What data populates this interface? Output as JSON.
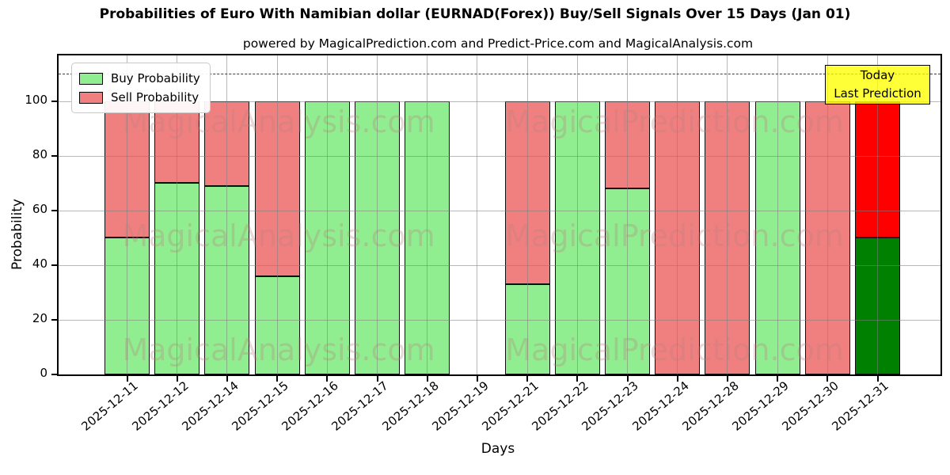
{
  "title": "Probabilities of Euro With Namibian dollar (EURNAD(Forex)) Buy/Sell Signals Over 15 Days (Jan 01)",
  "subtitle": "powered by MagicalPrediction.com and Predict-Price.com and MagicalAnalysis.com",
  "legend": [
    {
      "label": "Buy Probability",
      "color": "#90EE90"
    },
    {
      "label": "Sell Probability",
      "color": "#F08080"
    }
  ],
  "annotation": {
    "line1": "Today",
    "line2": "Last Prediction",
    "bg_color": "#FFFF00"
  },
  "watermarks": {
    "left": "MagicalAnalysis.com",
    "right": "MagicalPrediction.com"
  },
  "chart_data": {
    "type": "bar",
    "stacked": true,
    "title": "Probabilities of Euro With Namibian dollar (EURNAD(Forex)) Buy/Sell Signals Over 15 Days (Jan 01)",
    "xlabel": "Days",
    "ylabel": "Probability",
    "categories": [
      "2025-12-11",
      "2025-12-12",
      "2025-12-14",
      "2025-12-15",
      "2025-12-16",
      "2025-12-17",
      "2025-12-18",
      "2025-12-19",
      "2025-12-21",
      "2025-12-22",
      "2025-12-23",
      "2025-12-24",
      "2025-12-28",
      "2025-12-29",
      "2025-12-30",
      "2025-12-31"
    ],
    "series": [
      {
        "name": "Buy Probability",
        "color": "#90EE90",
        "values": [
          50,
          70,
          69,
          36,
          100,
          100,
          100,
          0,
          33,
          100,
          68,
          0,
          0,
          100,
          0,
          50
        ]
      },
      {
        "name": "Sell Probability",
        "color": "#F08080",
        "values": [
          50,
          30,
          31,
          64,
          0,
          0,
          0,
          0,
          67,
          0,
          32,
          100,
          100,
          0,
          100,
          50
        ]
      }
    ],
    "today_colors": {
      "buy": "#008000",
      "sell": "#FF0000"
    },
    "yticks": [
      0,
      20,
      40,
      60,
      80,
      100
    ],
    "ylim": [
      0,
      116.8
    ],
    "dashed_line_y": 110,
    "grid": true,
    "legend_position": "upper left"
  }
}
